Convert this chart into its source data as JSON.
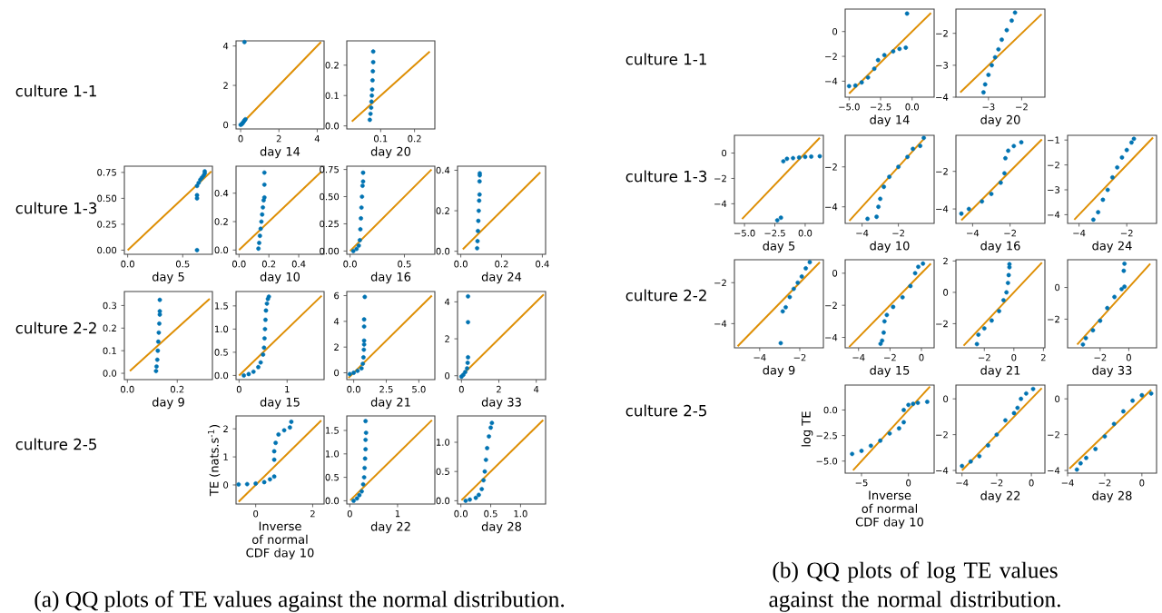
{
  "chart_data": [
    {
      "type": "other",
      "title": "(a) QQ plots of TE values against the normal distribution.",
      "annotations": [
        "culture 1-1",
        "culture 1-3",
        "culture 2-2",
        "culture 2-5"
      ]
    },
    {
      "type": "scatter",
      "xlabel": "day 14",
      "xlim": [
        -0.24,
        4.36
      ],
      "ylim": [
        -0.21,
        4.26
      ],
      "xticks": [
        0,
        2,
        4
      ],
      "yticks": [
        0,
        2,
        4
      ],
      "series": [
        {
          "type": "scatter",
          "marker": "circle",
          "color": "#0173b2",
          "x": [
            0,
            0.05,
            0.1,
            0.15,
            0.2,
            0.25,
            0.2
          ],
          "values": [
            0,
            0.03,
            0.08,
            0.15,
            0.22,
            0.28,
            4.2
          ]
        },
        {
          "type": "line",
          "color": "#de8f05",
          "x": [
            0,
            4.2
          ],
          "values": [
            0,
            4.2
          ]
        }
      ]
    },
    {
      "type": "scatter",
      "xlabel": "day 20",
      "xlim": [
        0.0,
        0.26
      ],
      "ylim": [
        -0.01,
        0.28
      ],
      "xticks": [
        0.1,
        0.2
      ],
      "yticks": [
        {
          "value": 0,
          "label": "0.0"
        },
        0.1,
        0.2
      ],
      "series": [
        {
          "type": "scatter",
          "marker": "circle",
          "color": "#0173b2",
          "x": [
            0.068,
            0.07,
            0.072,
            0.073,
            0.074,
            0.075,
            0.076,
            0.077,
            0.078,
            0.078
          ],
          "values": [
            0.02,
            0.04,
            0.06,
            0.08,
            0.1,
            0.12,
            0.15,
            0.18,
            0.21,
            0.245
          ]
        },
        {
          "type": "line",
          "color": "#de8f05",
          "x": [
            0.015,
            0.245
          ],
          "values": [
            0.015,
            0.245
          ]
        }
      ]
    },
    {
      "type": "scatter",
      "xlabel": "day 5",
      "xlim": [
        -0.03,
        0.77
      ],
      "ylim": [
        -0.04,
        0.81
      ],
      "xticks": [
        {
          "value": 0,
          "label": "0.0"
        },
        0.5
      ],
      "yticks": [
        {
          "value": 0,
          "label": "0.00"
        },
        0.25,
        {
          "value": 0.5,
          "label": "0.50"
        },
        0.75
      ],
      "series": [
        {
          "type": "scatter",
          "marker": "circle",
          "color": "#0173b2",
          "x": [
            0.63,
            0.63,
            0.63,
            0.63,
            0.645,
            0.66,
            0.675,
            0.69,
            0.7,
            0.7
          ],
          "values": [
            0.0,
            0.5,
            0.53,
            0.62,
            0.65,
            0.68,
            0.7,
            0.72,
            0.74,
            0.76
          ]
        },
        {
          "type": "line",
          "color": "#de8f05",
          "x": [
            0,
            0.76
          ],
          "values": [
            0,
            0.76
          ]
        }
      ]
    },
    {
      "type": "scatter",
      "xlabel": "day 10",
      "xlim": [
        -0.02,
        0.57
      ],
      "ylim": [
        -0.03,
        0.59
      ],
      "xticks": [
        {
          "value": 0,
          "label": "0.0"
        },
        0.2,
        0.4
      ],
      "yticks": [
        {
          "value": 0,
          "label": "0.0"
        },
        0.2,
        0.4
      ],
      "series": [
        {
          "type": "scatter",
          "marker": "circle",
          "color": "#0173b2",
          "x": [
            0.13,
            0.135,
            0.14,
            0.145,
            0.15,
            0.155,
            0.16,
            0.165,
            0.17,
            0.17,
            0.17
          ],
          "values": [
            0.01,
            0.05,
            0.1,
            0.15,
            0.2,
            0.25,
            0.3,
            0.35,
            0.37,
            0.46,
            0.545
          ]
        },
        {
          "type": "line",
          "color": "#de8f05",
          "x": [
            0,
            0.55
          ],
          "values": [
            0,
            0.55
          ]
        }
      ]
    },
    {
      "type": "scatter",
      "xlabel": "day 16",
      "xlim": [
        -0.03,
        0.78
      ],
      "ylim": [
        -0.03,
        0.78
      ],
      "xticks": [
        {
          "value": 0,
          "label": "0.0"
        },
        0.5
      ],
      "yticks": [
        {
          "value": 0,
          "label": "0.00"
        },
        0.25,
        {
          "value": 0.5,
          "label": "0.50"
        },
        0.75
      ],
      "series": [
        {
          "type": "scatter",
          "marker": "circle",
          "color": "#0173b2",
          "x": [
            0.03,
            0.06,
            0.08,
            0.09,
            0.095,
            0.1,
            0.105,
            0.11,
            0.115,
            0.12,
            0.12
          ],
          "values": [
            0.0,
            0.02,
            0.05,
            0.1,
            0.2,
            0.3,
            0.4,
            0.5,
            0.6,
            0.64,
            0.72
          ]
        },
        {
          "type": "line",
          "color": "#de8f05",
          "x": [
            0,
            0.75
          ],
          "values": [
            0,
            0.75
          ]
        }
      ]
    },
    {
      "type": "scatter",
      "xlabel": "day 24",
      "xlim": [
        -0.016,
        0.416
      ],
      "ylim": [
        -0.015,
        0.42
      ],
      "xticks": [
        {
          "value": 0,
          "label": "0.0"
        },
        0.2,
        0.4
      ],
      "yticks": [
        {
          "value": 0,
          "label": "0.0"
        },
        0.2,
        0.4
      ],
      "series": [
        {
          "type": "scatter",
          "marker": "circle",
          "color": "#0173b2",
          "x": [
            0.08,
            0.082,
            0.084,
            0.086,
            0.088,
            0.09,
            0.092,
            0.092,
            0.093,
            0.093
          ],
          "values": [
            0.015,
            0.05,
            0.1,
            0.15,
            0.2,
            0.25,
            0.28,
            0.345,
            0.375,
            0.385
          ]
        },
        {
          "type": "line",
          "color": "#de8f05",
          "x": [
            0.01,
            0.39
          ],
          "values": [
            0.01,
            0.39
          ]
        }
      ]
    },
    {
      "type": "scatter",
      "xlabel": "day 9",
      "xlim": [
        -0.012,
        0.341
      ],
      "ylim": [
        -0.028,
        0.362
      ],
      "xticks": [
        {
          "value": 0,
          "label": "0.0"
        },
        0.2
      ],
      "yticks": [
        {
          "value": 0,
          "label": "0.0"
        },
        0.1,
        0.2,
        0.3
      ],
      "series": [
        {
          "type": "scatter",
          "marker": "circle",
          "color": "#0173b2",
          "x": [
            0.115,
            0.117,
            0.12,
            0.122,
            0.124,
            0.126,
            0.128,
            0.13,
            0.13,
            0.13
          ],
          "values": [
            0.01,
            0.03,
            0.06,
            0.1,
            0.14,
            0.18,
            0.22,
            0.26,
            0.275,
            0.325
          ]
        },
        {
          "type": "line",
          "color": "#de8f05",
          "x": [
            0.01,
            0.33
          ],
          "values": [
            0.01,
            0.33
          ]
        }
      ]
    },
    {
      "type": "scatter",
      "xlabel": "day 15",
      "xlim": [
        -0.063,
        1.77
      ],
      "ylim": [
        -0.09,
        1.81
      ],
      "xticks": [
        0,
        1
      ],
      "yticks": [
        {
          "value": 0,
          "label": "0.0"
        },
        0.5,
        {
          "value": 1,
          "label": "1.0"
        },
        1.5
      ],
      "series": [
        {
          "type": "scatter",
          "marker": "circle",
          "color": "#0173b2",
          "x": [
            0.1,
            0.2,
            0.3,
            0.4,
            0.45,
            0.5,
            0.52,
            0.53,
            0.54,
            0.55,
            0.56,
            0.58,
            0.6,
            0.62
          ],
          "values": [
            0.0,
            0.03,
            0.08,
            0.18,
            0.28,
            0.45,
            0.6,
            0.8,
            1.0,
            1.2,
            1.4,
            1.55,
            1.65,
            1.7
          ]
        },
        {
          "type": "line",
          "color": "#de8f05",
          "x": [
            0,
            1.72
          ],
          "values": [
            0,
            1.72
          ]
        }
      ]
    },
    {
      "type": "scatter",
      "xlabel": "day 21",
      "xlim": [
        -0.53,
        6.23
      ],
      "ylim": [
        -0.53,
        6.32
      ],
      "xticks": [
        {
          "value": 0,
          "label": "0.0"
        },
        2.5,
        {
          "value": 5,
          "label": "5.0"
        }
      ],
      "yticks": [
        0,
        2,
        4,
        6
      ],
      "series": [
        {
          "type": "scatter",
          "marker": "circle",
          "color": "#0173b2",
          "x": [
            -0.3,
            0,
            0.3,
            0.6,
            0.7,
            0.75,
            0.78,
            0.8,
            0.8,
            0.8,
            0.8,
            0.85
          ],
          "values": [
            -0.1,
            0.0,
            0.15,
            0.35,
            0.7,
            1.2,
            1.8,
            2.2,
            2.5,
            3.6,
            4.15,
            5.9
          ]
        },
        {
          "type": "line",
          "color": "#de8f05",
          "x": [
            -0.4,
            6
          ],
          "values": [
            -0.4,
            6
          ]
        }
      ]
    },
    {
      "type": "scatter",
      "xlabel": "day 33",
      "xlim": [
        -0.21,
        4.5
      ],
      "ylim": [
        -0.21,
        4.56
      ],
      "xticks": [
        0,
        2,
        4
      ],
      "yticks": [
        0,
        2,
        4
      ],
      "series": [
        {
          "type": "scatter",
          "marker": "circle",
          "color": "#0173b2",
          "x": [
            0,
            0.1,
            0.2,
            0.3,
            0.33,
            0.35,
            0.35,
            0.35
          ],
          "values": [
            -0.05,
            0.05,
            0.2,
            0.4,
            0.7,
            1.0,
            2.9,
            4.3
          ]
        },
        {
          "type": "line",
          "color": "#de8f05",
          "x": [
            0,
            4.4
          ],
          "values": [
            0,
            4.4
          ]
        }
      ]
    },
    {
      "type": "scatter",
      "xlabel": "Inverse of normal CDF day 10",
      "ylabel": "TE (nats.s$^{-1}$)",
      "xlim": [
        -0.69,
        2.4
      ],
      "ylim": [
        -0.68,
        2.46
      ],
      "xticks": [
        0,
        2
      ],
      "yticks": [
        0,
        1,
        2
      ],
      "series": [
        {
          "type": "scatter",
          "marker": "circle",
          "color": "#0173b2",
          "x": [
            -0.6,
            -0.3,
            0,
            0.3,
            0.5,
            0.65,
            0.65,
            0.65,
            0.7,
            0.8,
            1.0,
            1.2,
            1.25
          ],
          "values": [
            0.02,
            0.03,
            0.05,
            0.1,
            0.2,
            0.3,
            0.9,
            1.2,
            1.5,
            1.8,
            1.95,
            2.05,
            2.25
          ]
        },
        {
          "type": "line",
          "color": "#de8f05",
          "x": [
            -0.6,
            2.3
          ],
          "values": [
            -0.6,
            2.3
          ]
        }
      ]
    },
    {
      "type": "scatter",
      "xlabel": "day 22",
      "xlim": [
        -0.063,
        1.78
      ],
      "ylim": [
        -0.07,
        1.81
      ],
      "xticks": [
        0,
        1
      ],
      "yticks": [
        {
          "value": 0,
          "label": "0.0"
        },
        0.5,
        {
          "value": 1,
          "label": "1.0"
        },
        1.5
      ],
      "series": [
        {
          "type": "scatter",
          "marker": "circle",
          "color": "#0173b2",
          "x": [
            0.08,
            0.15,
            0.2,
            0.25,
            0.28,
            0.3,
            0.31,
            0.32,
            0.33,
            0.33,
            0.34,
            0.33
          ],
          "values": [
            0.0,
            0.05,
            0.12,
            0.2,
            0.35,
            0.5,
            0.7,
            0.9,
            1.1,
            1.3,
            1.45,
            1.7
          ]
        },
        {
          "type": "line",
          "color": "#de8f05",
          "x": [
            0.01,
            1.72
          ],
          "values": [
            0.01,
            1.72
          ]
        }
      ]
    },
    {
      "type": "scatter",
      "xlabel": "day 28",
      "xlim": [
        -0.056,
        1.42
      ],
      "ylim": [
        -0.056,
        1.45
      ],
      "xticks": [
        {
          "value": 0,
          "label": "0.0"
        },
        0.5,
        {
          "value": 1,
          "label": "1.0"
        }
      ],
      "yticks": [
        {
          "value": 0,
          "label": "0.0"
        },
        0.5,
        {
          "value": 1,
          "label": "1.0"
        }
      ],
      "series": [
        {
          "type": "scatter",
          "marker": "circle",
          "color": "#0173b2",
          "x": [
            0.08,
            0.15,
            0.25,
            0.3,
            0.35,
            0.38,
            0.4,
            0.42,
            0.44,
            0.47,
            0.5,
            0.52
          ],
          "values": [
            0.0,
            0.02,
            0.05,
            0.1,
            0.2,
            0.35,
            0.5,
            0.7,
            0.9,
            1.1,
            1.25,
            1.33
          ]
        },
        {
          "type": "line",
          "color": "#de8f05",
          "x": [
            0.01,
            1.38
          ],
          "values": [
            0.01,
            1.38
          ]
        }
      ]
    },
    {
      "type": "other",
      "title": "(b) QQ plots of log TE values against the normal distribution.",
      "annotations": [
        "culture 1-1",
        "culture 1-3",
        "culture 2-2",
        "culture 2-5"
      ]
    },
    {
      "type": "scatter",
      "xlabel": "day 14",
      "xlim": [
        -5.31,
        1.75
      ],
      "ylim": [
        -5.29,
        1.81
      ],
      "xticks": [
        {
          "value": -5,
          "label": "−5.0"
        },
        {
          "value": -2.5,
          "label": "−2.5"
        },
        {
          "value": 0,
          "label": "0.0"
        }
      ],
      "yticks": [
        {
          "value": -4,
          "label": "−4"
        },
        {
          "value": -2,
          "label": "−2"
        },
        0
      ],
      "series": [
        {
          "type": "scatter",
          "marker": "circle",
          "color": "#0173b2",
          "x": [
            -5,
            -4.5,
            -4,
            -3.5,
            -3,
            -2.7,
            -2.2,
            -1.5,
            -1,
            -0.5,
            -0.4
          ],
          "values": [
            -4.4,
            -4.35,
            -4.1,
            -3.7,
            -3.0,
            -2.3,
            -1.9,
            -1.6,
            -1.4,
            -1.3,
            1.45
          ]
        },
        {
          "type": "line",
          "color": "#de8f05",
          "x": [
            -5,
            1.5
          ],
          "values": [
            -5,
            1.5
          ]
        }
      ]
    },
    {
      "type": "scatter",
      "xlabel": "day 20",
      "xlim": [
        -3.98,
        -1.3
      ],
      "ylim": [
        -4.0,
        -1.24
      ],
      "xticks": [
        {
          "value": -3,
          "label": "−3"
        },
        {
          "value": -2,
          "label": "−2"
        }
      ],
      "yticks": [
        {
          "value": -4,
          "label": "−4"
        },
        {
          "value": -3,
          "label": "−3"
        },
        {
          "value": -2,
          "label": "−2"
        }
      ],
      "series": [
        {
          "type": "scatter",
          "marker": "circle",
          "color": "#0173b2",
          "x": [
            -3.15,
            -3.1,
            -3.0,
            -2.9,
            -2.8,
            -2.7,
            -2.6,
            -2.45,
            -2.3,
            -2.2
          ],
          "values": [
            -3.85,
            -3.6,
            -3.3,
            -3.0,
            -2.75,
            -2.5,
            -2.2,
            -1.9,
            -1.6,
            -1.35
          ]
        },
        {
          "type": "line",
          "color": "#de8f05",
          "x": [
            -3.85,
            -1.4
          ],
          "values": [
            -3.85,
            -1.4
          ]
        }
      ]
    },
    {
      "type": "scatter",
      "xlabel": "day 5",
      "xlim": [
        -5.83,
        1.5
      ],
      "ylim": [
        -5.55,
        1.4
      ],
      "xticks": [
        {
          "value": -5,
          "label": "−5.0"
        },
        {
          "value": -2.5,
          "label": "−2.5"
        },
        {
          "value": 0,
          "label": "0.0"
        }
      ],
      "yticks": [
        {
          "value": -4,
          "label": "−4"
        },
        {
          "value": -2,
          "label": "−2"
        },
        0
      ],
      "series": [
        {
          "type": "scatter",
          "marker": "circle",
          "color": "#0173b2",
          "x": [
            -2.3,
            -2.0,
            -1.8,
            -1.5,
            -1,
            -0.5,
            0,
            0.5,
            1.2
          ],
          "values": [
            -5.3,
            -5.1,
            -0.65,
            -0.45,
            -0.4,
            -0.35,
            -0.3,
            -0.28,
            -0.25
          ]
        },
        {
          "type": "line",
          "color": "#de8f05",
          "x": [
            -5.2,
            1.2
          ],
          "values": [
            -5.2,
            1.2
          ]
        }
      ]
    },
    {
      "type": "scatter",
      "xlabel": "day 10",
      "xlim": [
        -4.93,
        -0.03
      ],
      "ylim": [
        -4.83,
        -0.42
      ],
      "xticks": [
        {
          "value": -4,
          "label": "−4"
        },
        {
          "value": -2,
          "label": "−2"
        }
      ],
      "yticks": [
        {
          "value": -4,
          "label": "−4"
        },
        {
          "value": -2,
          "label": "−2"
        }
      ],
      "series": [
        {
          "type": "scatter",
          "marker": "circle",
          "color": "#0173b2",
          "x": [
            -3.7,
            -3.2,
            -3.1,
            -3.0,
            -2.8,
            -2.5,
            -2.0,
            -1.5,
            -1.2,
            -0.8,
            -0.6
          ],
          "values": [
            -4.6,
            -4.5,
            -4.0,
            -3.6,
            -3.0,
            -2.5,
            -2.0,
            -1.5,
            -1.1,
            -0.95,
            -0.55
          ]
        },
        {
          "type": "line",
          "color": "#de8f05",
          "x": [
            -4.7,
            -0.55
          ],
          "values": [
            -4.7,
            -0.55
          ]
        }
      ]
    },
    {
      "type": "scatter",
      "xlabel": "day 16",
      "xlim": [
        -4.89,
        -0.14
      ],
      "ylim": [
        -4.77,
        -0.08
      ],
      "xticks": [
        {
          "value": -4,
          "label": "−4"
        },
        {
          "value": -2,
          "label": "−2"
        }
      ],
      "yticks": [
        {
          "value": -4,
          "label": "−4"
        },
        {
          "value": -2,
          "label": "−2"
        }
      ],
      "series": [
        {
          "type": "scatter",
          "marker": "circle",
          "color": "#0173b2",
          "x": [
            -4.6,
            -4.2,
            -3.5,
            -3.0,
            -2.5,
            -2.3,
            -2.25,
            -2.1,
            -1.8,
            -1.4
          ],
          "values": [
            -4.25,
            -4.0,
            -3.6,
            -3.2,
            -2.6,
            -2.1,
            -1.3,
            -0.9,
            -0.65,
            -0.45
          ]
        },
        {
          "type": "line",
          "color": "#de8f05",
          "x": [
            -4.6,
            -0.3
          ],
          "values": [
            -4.6,
            -0.3
          ]
        }
      ]
    },
    {
      "type": "scatter",
      "xlabel": "day 24",
      "xlim": [
        -4.48,
        -0.75
      ],
      "ylim": [
        -4.35,
        -0.81
      ],
      "xticks": [
        {
          "value": -4,
          "label": "−4"
        },
        {
          "value": -2,
          "label": "−2"
        }
      ],
      "yticks": [
        {
          "value": -4,
          "label": "−4"
        },
        {
          "value": -3,
          "label": "−3"
        },
        {
          "value": -2,
          "label": "−2"
        },
        {
          "value": -1,
          "label": "−1"
        }
      ],
      "series": [
        {
          "type": "scatter",
          "marker": "circle",
          "color": "#0173b2",
          "x": [
            -3.4,
            -3.2,
            -3.0,
            -2.8,
            -2.6,
            -2.4,
            -2.2,
            -2.0,
            -1.8,
            -1.7
          ],
          "values": [
            -4.2,
            -3.9,
            -3.4,
            -3.0,
            -2.5,
            -2.1,
            -1.7,
            -1.4,
            -1.1,
            -0.95
          ]
        },
        {
          "type": "line",
          "color": "#de8f05",
          "x": [
            -4.2,
            -0.9
          ],
          "values": [
            -4.2,
            -0.9
          ]
        }
      ]
    },
    {
      "type": "scatter",
      "xlabel": "day 9",
      "xlim": [
        -5.26,
        -0.82
      ],
      "ylim": [
        -5.18,
        -0.88
      ],
      "xticks": [
        {
          "value": -4,
          "label": "−4"
        },
        {
          "value": -2,
          "label": "−2"
        }
      ],
      "yticks": [
        {
          "value": -4,
          "label": "−4"
        },
        {
          "value": -2,
          "label": "−2"
        }
      ],
      "series": [
        {
          "type": "scatter",
          "marker": "circle",
          "color": "#0173b2",
          "x": [
            -2.95,
            -2.85,
            -2.7,
            -2.5,
            -2.3,
            -2.1,
            -1.9,
            -1.7,
            -1.5
          ],
          "values": [
            -4.95,
            -3.4,
            -3.2,
            -2.7,
            -2.3,
            -2.0,
            -1.7,
            -1.3,
            -1.0
          ]
        },
        {
          "type": "line",
          "color": "#de8f05",
          "x": [
            -5.1,
            -1.0
          ],
          "values": [
            -5.1,
            -1.0
          ]
        }
      ]
    },
    {
      "type": "scatter",
      "xlabel": "day 15",
      "xlim": [
        -4.85,
        0.81
      ],
      "ylim": [
        -4.65,
        0.84
      ],
      "xticks": [
        {
          "value": -4,
          "label": "−4"
        },
        {
          "value": -2,
          "label": "−2"
        },
        0
      ],
      "yticks": [
        {
          "value": -4,
          "label": "−4"
        },
        {
          "value": -2,
          "label": "−2"
        },
        0
      ],
      "series": [
        {
          "type": "scatter",
          "marker": "circle",
          "color": "#0173b2",
          "x": [
            -2.6,
            -2.5,
            -2.4,
            -2.35,
            -2.2,
            -1.8,
            -1.2,
            -0.7,
            -0.4,
            -0.2,
            0.1
          ],
          "values": [
            -4.4,
            -4.2,
            -3.7,
            -3.0,
            -2.6,
            -2.1,
            -1.5,
            -0.8,
            0.0,
            0.4,
            0.6
          ]
        },
        {
          "type": "line",
          "color": "#de8f05",
          "x": [
            -4.6,
            0.6
          ],
          "values": [
            -4.6,
            0.6
          ]
        }
      ]
    },
    {
      "type": "scatter",
      "xlabel": "day 21",
      "xlim": [
        -3.92,
        2.1
      ],
      "ylim": [
        -3.54,
        2.08
      ],
      "xticks": [
        {
          "value": -2,
          "label": "−2"
        },
        0,
        2
      ],
      "yticks": [
        {
          "value": -2,
          "label": "−2"
        },
        0,
        2
      ],
      "series": [
        {
          "type": "scatter",
          "marker": "circle",
          "color": "#0173b2",
          "x": [
            -2.5,
            -2.4,
            -2.0,
            -1.5,
            -1.0,
            -0.7,
            -0.5,
            -0.4,
            -0.35,
            -0.3,
            -0.3
          ],
          "values": [
            -3.3,
            -2.7,
            -2.3,
            -1.8,
            -1.2,
            -0.5,
            0.0,
            0.6,
            1.1,
            1.6,
            1.8
          ]
        },
        {
          "type": "line",
          "color": "#de8f05",
          "x": [
            -3.4,
            1.9
          ],
          "values": [
            -3.4,
            1.9
          ]
        }
      ]
    },
    {
      "type": "scatter",
      "xlabel": "day 33",
      "xlim": [
        -4.27,
        1.94
      ],
      "ylim": [
        -3.81,
        1.75
      ],
      "xticks": [
        {
          "value": -2,
          "label": "−2"
        },
        0
      ],
      "yticks": [
        {
          "value": -2,
          "label": "−2"
        },
        0
      ],
      "series": [
        {
          "type": "scatter",
          "marker": "circle",
          "color": "#0173b2",
          "x": [
            -3.2,
            -3.0,
            -2.5,
            -2.0,
            -1.5,
            -1.0,
            -0.5,
            -0.3,
            -0.35,
            -0.3
          ],
          "values": [
            -3.6,
            -3.2,
            -2.7,
            -2.1,
            -1.3,
            -0.6,
            -0.1,
            0.05,
            1.05,
            1.5
          ]
        },
        {
          "type": "line",
          "color": "#de8f05",
          "x": [
            -3.6,
            1.5
          ],
          "values": [
            -3.6,
            1.5
          ]
        }
      ]
    },
    {
      "type": "scatter",
      "xlabel": "Inverse of normal CDF day 10",
      "ylabel": "log TE",
      "xlim": [
        -6.74,
        2.74
      ],
      "ylim": [
        -6.18,
        2.44
      ],
      "xticks": [
        {
          "value": -5,
          "label": "−5"
        },
        0
      ],
      "yticks": [
        {
          "value": -5,
          "label": "−5.0"
        },
        {
          "value": -2.5,
          "label": "−2.5"
        },
        {
          "value": 0,
          "label": "0.0"
        }
      ],
      "series": [
        {
          "type": "scatter",
          "marker": "circle",
          "color": "#0173b2",
          "x": [
            -6,
            -5,
            -4,
            -3,
            -2,
            -1,
            -0.5,
            -0.5,
            0,
            0.5,
            1,
            2
          ],
          "values": [
            -4.3,
            -4.0,
            -3.5,
            -3.0,
            -2.3,
            -1.8,
            -1.2,
            0.0,
            0.5,
            0.6,
            0.7,
            0.8
          ]
        },
        {
          "type": "line",
          "color": "#de8f05",
          "x": [
            -5.9,
            2.3
          ],
          "values": [
            -5.9,
            2.3
          ]
        }
      ]
    },
    {
      "type": "scatter",
      "xlabel": "day 22",
      "xlim": [
        -4.35,
        0.78
      ],
      "ylim": [
        -4.15,
        0.77
      ],
      "xticks": [
        {
          "value": -4,
          "label": "−4"
        },
        {
          "value": -2,
          "label": "−2"
        },
        0
      ],
      "yticks": [
        {
          "value": -4,
          "label": "−4"
        },
        {
          "value": -2,
          "label": "−2"
        },
        0
      ],
      "series": [
        {
          "type": "scatter",
          "marker": "circle",
          "color": "#0173b2",
          "x": [
            -4,
            -3.5,
            -3,
            -2.5,
            -2,
            -1.5,
            -1,
            -0.8,
            -0.6,
            -0.3,
            0.1
          ],
          "values": [
            -3.75,
            -3.5,
            -3.2,
            -2.6,
            -2.0,
            -1.2,
            -0.8,
            -0.5,
            0.0,
            0.3,
            0.55
          ]
        },
        {
          "type": "line",
          "color": "#de8f05",
          "x": [
            -4,
            0.6
          ],
          "values": [
            -4,
            0.6
          ]
        }
      ]
    },
    {
      "type": "scatter",
      "xlabel": "day 28",
      "xlim": [
        -4.0,
        0.79
      ],
      "ylim": [
        -4.15,
        0.77
      ],
      "xticks": [
        {
          "value": -4,
          "label": "−4"
        },
        {
          "value": -2,
          "label": "−2"
        },
        0
      ],
      "yticks": [
        {
          "value": -4,
          "label": "−4"
        },
        {
          "value": -2,
          "label": "−2"
        },
        0
      ],
      "series": [
        {
          "type": "scatter",
          "marker": "circle",
          "color": "#0173b2",
          "x": [
            -3.5,
            -3.3,
            -3,
            -2.5,
            -2,
            -1.5,
            -1,
            -0.5,
            0,
            0.5
          ],
          "values": [
            -3.95,
            -3.6,
            -3.3,
            -2.8,
            -2.1,
            -1.4,
            -0.7,
            -0.1,
            0.2,
            0.3
          ]
        },
        {
          "type": "line",
          "color": "#de8f05",
          "x": [
            -3.9,
            0.5
          ],
          "values": [
            -3.9,
            0.5
          ]
        }
      ]
    }
  ]
}
